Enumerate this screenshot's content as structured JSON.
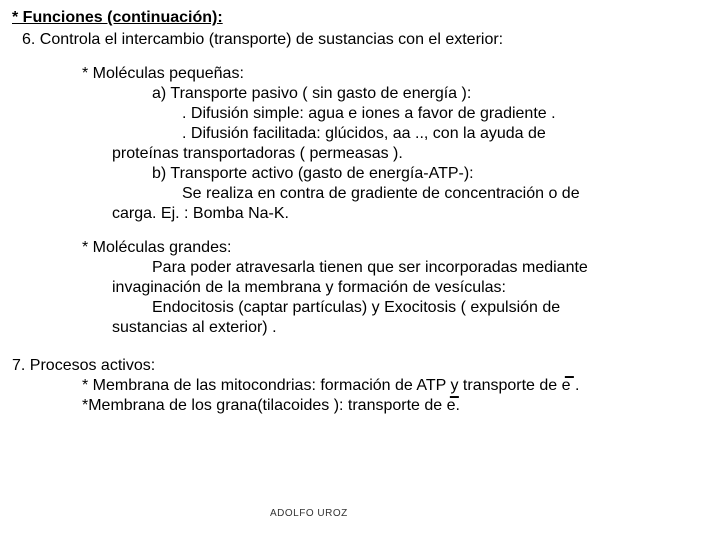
{
  "title": "* Funciones (continuación):",
  "line6": "6. Controla el intercambio (transporte) de  sustancias con el exterior:",
  "mol_pequenas": "* Moléculas pequeñas:",
  "a_line": "a) Transporte  pasivo ( sin gasto  de energía ):",
  "dif_simple": ". Difusión simple: agua e iones a favor de gradiente .",
  "dif_facil": ". Difusión facilitada: glúcidos, aa  .., con la ayuda  de",
  "dif_facil2": "proteínas transportadoras ( permeasas  ).",
  "b_line": "b) Transporte  activo (gasto   de energía-ATP-):",
  "b_line2": "Se realiza en contra  de gradiente  de concentración o de",
  "b_line3": "carga. Ej. : Bomba Na-K.",
  "mol_grandes": "* Moléculas grandes:",
  "g1": "Para poder atravesarla tienen que ser incorporadas mediante",
  "g2": "invaginación de la membrana y formación de vesículas:",
  "g3": "Endocitosis (captar partículas) y Exocitosis  ( expulsión de",
  "g4": "sustancias al exterior) .",
  "line7": "7. Procesos activos:",
  "p7a_pre": "* Membrana de las mitocondrias: formación de ATP y transporte de ",
  "p7a_post": " .",
  "p7b_pre": "*Membrana de los grana(tilacoides ): transporte de ",
  "p7b_post": ".",
  "e_symbol": "e",
  "minus": "−",
  "watermark": "ADOLFO UROZ"
}
